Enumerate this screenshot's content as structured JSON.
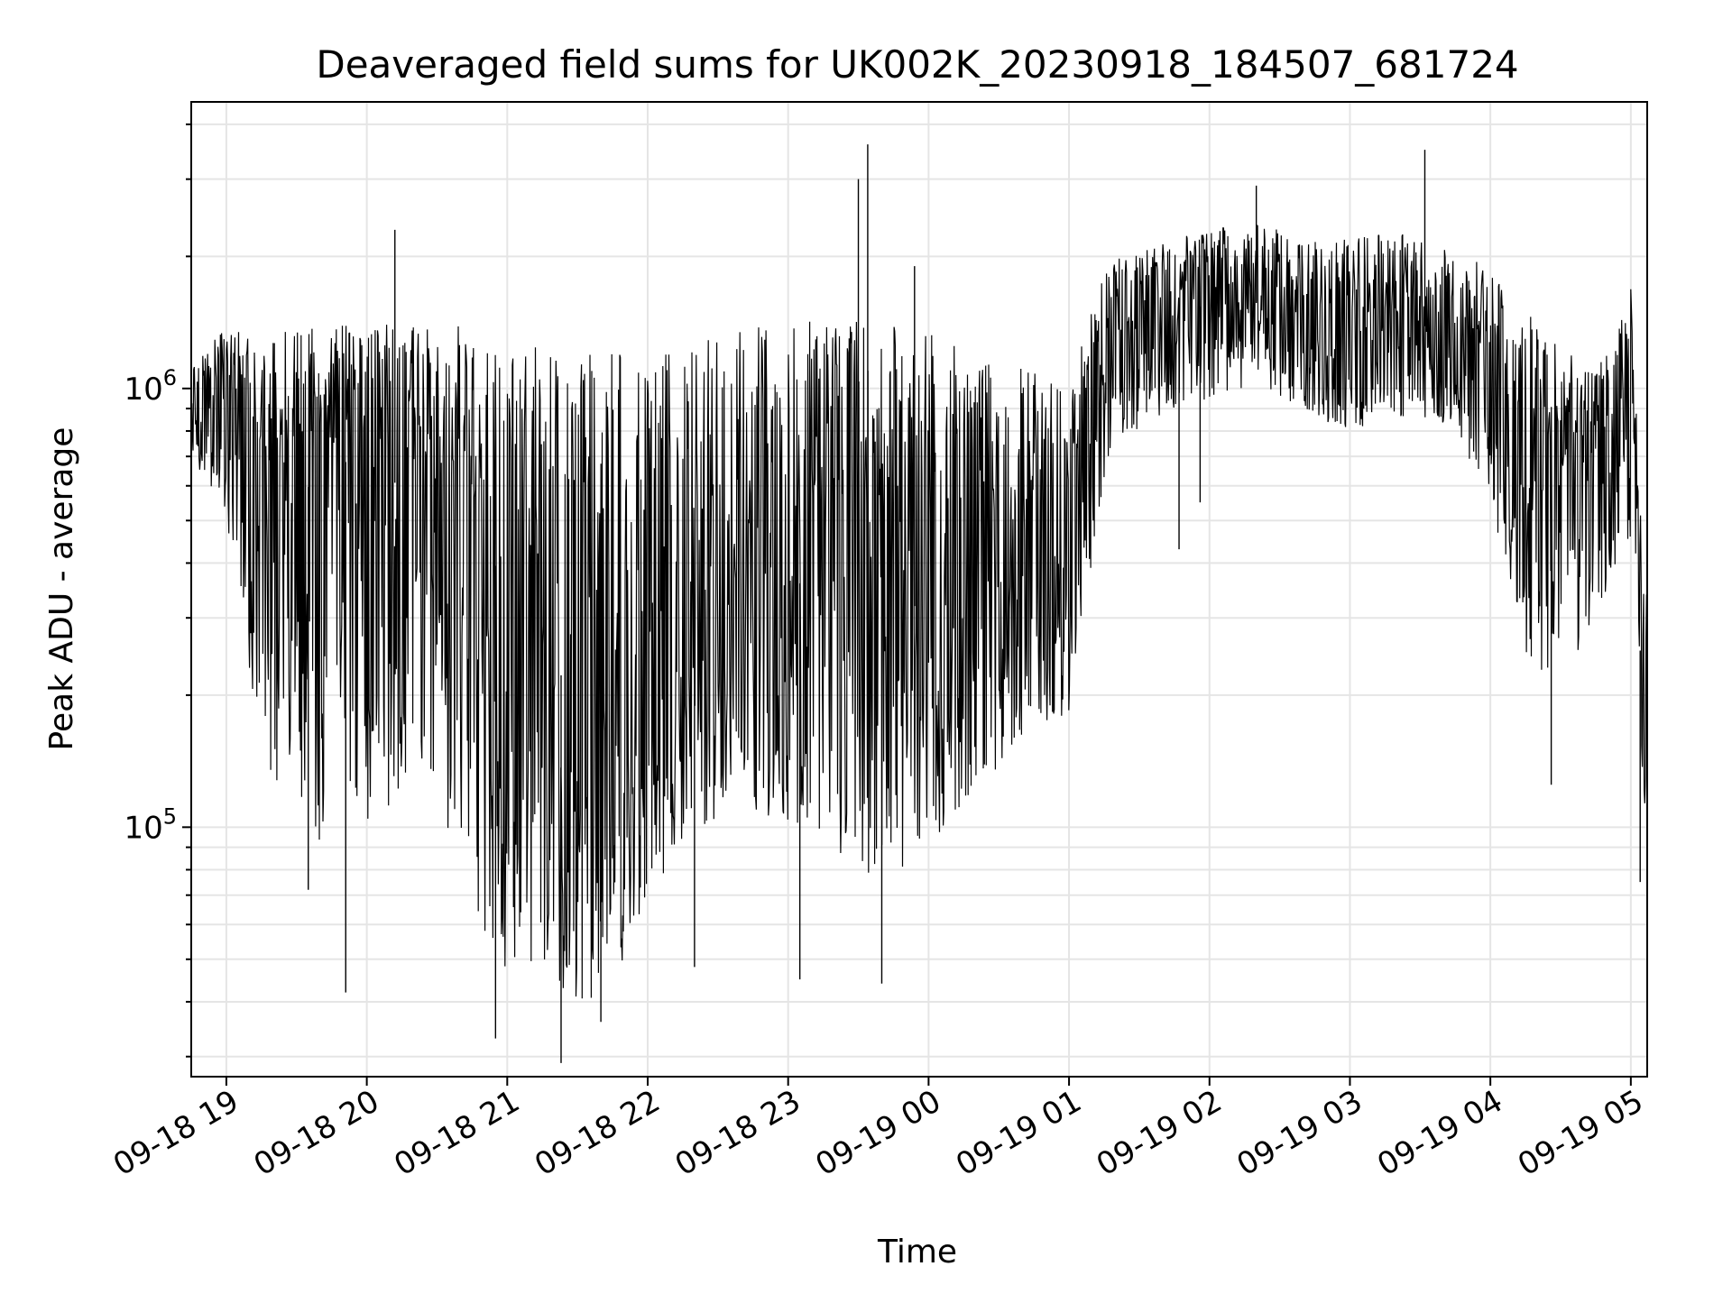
{
  "chart_data": {
    "type": "line",
    "title": "Deaveraged field sums for UK002K_20230918_184507_681724",
    "xlabel": "Time",
    "ylabel": "Peak ADU - average",
    "yscale": "log",
    "grid": true,
    "legend": "none",
    "ylim": [
      27000,
      4500000
    ],
    "xlim": [
      "2023-09-18 18:45",
      "2023-09-19 05:07"
    ],
    "x_ticks": [
      "09-18 19",
      "09-18 20",
      "09-18 21",
      "09-18 22",
      "09-18 23",
      "09-19 00",
      "09-19 01",
      "09-19 02",
      "09-19 03",
      "09-19 04",
      "09-19 05"
    ],
    "y_ticks": [
      {
        "base": "10",
        "exp": "5",
        "value": 100000
      },
      {
        "base": "10",
        "exp": "6",
        "value": 1000000
      }
    ],
    "colors": {
      "line": "#000000",
      "grid": "#e5e5e5",
      "frame": "#000000"
    },
    "series": [
      {
        "x": [
          "2023-09-18 18:45",
          "2023-09-18 19:00",
          "2023-09-18 19:15",
          "2023-09-18 19:30",
          "2023-09-18 19:45",
          "2023-09-18 20:00",
          "2023-09-18 20:15",
          "2023-09-18 20:30",
          "2023-09-18 20:45",
          "2023-09-18 21:00",
          "2023-09-18 21:15",
          "2023-09-18 21:30",
          "2023-09-18 21:45",
          "2023-09-18 22:00",
          "2023-09-18 22:15",
          "2023-09-18 22:30",
          "2023-09-18 22:45",
          "2023-09-18 23:00",
          "2023-09-18 23:15",
          "2023-09-18 23:30",
          "2023-09-18 23:45",
          "2023-09-19 00:00",
          "2023-09-19 00:15",
          "2023-09-19 00:30",
          "2023-09-19 00:45",
          "2023-09-19 01:00",
          "2023-09-19 01:15",
          "2023-09-19 01:30",
          "2023-09-19 01:45",
          "2023-09-19 02:00",
          "2023-09-19 02:15",
          "2023-09-19 02:30",
          "2023-09-19 02:45",
          "2023-09-19 03:00",
          "2023-09-19 03:15",
          "2023-09-19 03:30",
          "2023-09-19 03:45",
          "2023-09-19 04:00",
          "2023-09-19 04:15",
          "2023-09-19 04:30",
          "2023-09-19 04:45",
          "2023-09-19 05:00",
          "2023-09-19 05:07"
        ],
        "y": [
          900000,
          1100000,
          600000,
          550000,
          700000,
          650000,
          600000,
          550000,
          500000,
          350000,
          250000,
          200000,
          150000,
          220000,
          250000,
          280000,
          330000,
          350000,
          380000,
          400000,
          350000,
          300000,
          380000,
          420000,
          400000,
          450000,
          1200000,
          1450000,
          1500000,
          1550000,
          1600000,
          1500000,
          1450000,
          1400000,
          1500000,
          1400000,
          1300000,
          1050000,
          700000,
          600000,
          700000,
          1000000,
          90000
        ]
      }
    ],
    "envelope": {
      "x": [
        "2023-09-18 18:45",
        "2023-09-18 19:00",
        "2023-09-18 19:15",
        "2023-09-18 19:30",
        "2023-09-18 19:45",
        "2023-09-18 20:00",
        "2023-09-18 20:15",
        "2023-09-18 20:30",
        "2023-09-18 20:45",
        "2023-09-18 21:00",
        "2023-09-18 21:15",
        "2023-09-18 21:30",
        "2023-09-18 21:45",
        "2023-09-18 22:00",
        "2023-09-18 22:15",
        "2023-09-18 22:30",
        "2023-09-18 22:45",
        "2023-09-18 23:00",
        "2023-09-18 23:15",
        "2023-09-18 23:30",
        "2023-09-18 23:45",
        "2023-09-19 00:00",
        "2023-09-19 00:15",
        "2023-09-19 00:30",
        "2023-09-19 00:45",
        "2023-09-19 01:00",
        "2023-09-19 01:15",
        "2023-09-19 01:30",
        "2023-09-19 01:45",
        "2023-09-19 02:00",
        "2023-09-19 02:15",
        "2023-09-19 02:30",
        "2023-09-19 02:45",
        "2023-09-19 03:00",
        "2023-09-19 03:15",
        "2023-09-19 03:30",
        "2023-09-19 03:45",
        "2023-09-19 04:00",
        "2023-09-19 04:15",
        "2023-09-19 04:30",
        "2023-09-19 04:45",
        "2023-09-19 05:00",
        "2023-09-19 05:07"
      ],
      "upper": [
        1100000,
        1400000,
        1300000,
        1400000,
        1400000,
        1400000,
        1400000,
        1400000,
        1400000,
        1300000,
        1250000,
        1200000,
        1200000,
        1200000,
        1250000,
        1350000,
        1400000,
        1400000,
        1450000,
        1450000,
        1450000,
        1400000,
        1200000,
        1150000,
        1100000,
        1000000,
        1900000,
        2100000,
        2200000,
        2300000,
        2400000,
        2300000,
        2200000,
        2200000,
        2300000,
        2200000,
        2100000,
        1900000,
        1500000,
        1300000,
        1100000,
        1700000,
        400000
      ],
      "lower": [
        700000,
        500000,
        150000,
        100000,
        90000,
        100000,
        120000,
        120000,
        60000,
        45000,
        42000,
        40000,
        42000,
        70000,
        90000,
        100000,
        110000,
        100000,
        95000,
        80000,
        75000,
        90000,
        110000,
        130000,
        160000,
        180000,
        600000,
        800000,
        900000,
        950000,
        1000000,
        950000,
        850000,
        800000,
        850000,
        850000,
        800000,
        550000,
        250000,
        200000,
        300000,
        450000,
        75000
      ]
    },
    "spikes": [
      {
        "x": "2023-09-18 19:35",
        "y": 72000
      },
      {
        "x": "2023-09-18 19:51",
        "y": 42000
      },
      {
        "x": "2023-09-18 20:12",
        "y": 2300000
      },
      {
        "x": "2023-09-18 20:55",
        "y": 33000
      },
      {
        "x": "2023-09-18 21:23",
        "y": 29000
      },
      {
        "x": "2023-09-18 21:40",
        "y": 36000
      },
      {
        "x": "2023-09-18 22:20",
        "y": 48000
      },
      {
        "x": "2023-09-18 23:05",
        "y": 45000
      },
      {
        "x": "2023-09-18 23:30",
        "y": 3000000
      },
      {
        "x": "2023-09-18 23:34",
        "y": 3600000
      },
      {
        "x": "2023-09-18 23:40",
        "y": 44000
      },
      {
        "x": "2023-09-18 23:54",
        "y": 1900000
      },
      {
        "x": "2023-09-19 01:47",
        "y": 430000
      },
      {
        "x": "2023-09-19 01:56",
        "y": 550000
      },
      {
        "x": "2023-09-19 02:20",
        "y": 2900000
      },
      {
        "x": "2023-09-19 03:32",
        "y": 3500000
      },
      {
        "x": "2023-09-19 04:26",
        "y": 125000
      },
      {
        "x": "2023-09-19 05:04",
        "y": 75000
      }
    ]
  }
}
